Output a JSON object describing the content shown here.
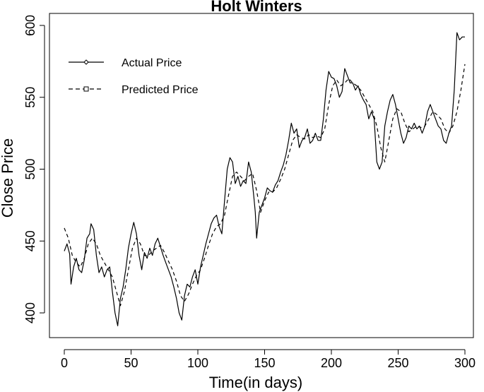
{
  "chart_data": {
    "type": "line",
    "title": "Holt Winters",
    "xlabel": "Time(in days)",
    "ylabel": "Close Price",
    "xlim": [
      0,
      300
    ],
    "ylim": [
      388,
      602
    ],
    "xticks": [
      0,
      50,
      100,
      150,
      200,
      250,
      300
    ],
    "yticks": [
      400,
      450,
      500,
      550,
      600
    ],
    "grid": false,
    "legend_position": "top-left",
    "series": [
      {
        "name": "Actual Price",
        "style": "solid",
        "marker": "diamond",
        "points": [
          [
            0,
            443
          ],
          [
            2,
            448
          ],
          [
            4,
            441
          ],
          [
            5,
            420
          ],
          [
            7,
            432
          ],
          [
            9,
            438
          ],
          [
            11,
            430
          ],
          [
            13,
            428
          ],
          [
            15,
            437
          ],
          [
            17,
            452
          ],
          [
            19,
            455
          ],
          [
            20,
            462
          ],
          [
            22,
            458
          ],
          [
            24,
            440
          ],
          [
            26,
            428
          ],
          [
            28,
            432
          ],
          [
            30,
            425
          ],
          [
            32,
            430
          ],
          [
            34,
            432
          ],
          [
            36,
            415
          ],
          [
            38,
            400
          ],
          [
            40,
            391
          ],
          [
            42,
            410
          ],
          [
            44,
            418
          ],
          [
            46,
            430
          ],
          [
            48,
            445
          ],
          [
            50,
            455
          ],
          [
            52,
            463
          ],
          [
            54,
            455
          ],
          [
            56,
            440
          ],
          [
            58,
            430
          ],
          [
            60,
            442
          ],
          [
            62,
            438
          ],
          [
            64,
            445
          ],
          [
            66,
            440
          ],
          [
            68,
            448
          ],
          [
            70,
            452
          ],
          [
            72,
            446
          ],
          [
            74,
            440
          ],
          [
            76,
            435
          ],
          [
            78,
            430
          ],
          [
            80,
            425
          ],
          [
            82,
            418
          ],
          [
            84,
            410
          ],
          [
            86,
            400
          ],
          [
            88,
            395
          ],
          [
            90,
            412
          ],
          [
            92,
            420
          ],
          [
            94,
            418
          ],
          [
            96,
            425
          ],
          [
            98,
            430
          ],
          [
            100,
            420
          ],
          [
            102,
            432
          ],
          [
            104,
            440
          ],
          [
            106,
            448
          ],
          [
            108,
            455
          ],
          [
            110,
            462
          ],
          [
            112,
            466
          ],
          [
            114,
            468
          ],
          [
            116,
            460
          ],
          [
            118,
            455
          ],
          [
            120,
            478
          ],
          [
            122,
            500
          ],
          [
            124,
            508
          ],
          [
            126,
            505
          ],
          [
            128,
            490
          ],
          [
            130,
            495
          ],
          [
            132,
            488
          ],
          [
            134,
            492
          ],
          [
            136,
            490
          ],
          [
            138,
            505
          ],
          [
            140,
            498
          ],
          [
            142,
            480
          ],
          [
            143,
            470
          ],
          [
            144,
            452
          ],
          [
            146,
            470
          ],
          [
            148,
            475
          ],
          [
            150,
            480
          ],
          [
            152,
            487
          ],
          [
            154,
            485
          ],
          [
            156,
            484
          ],
          [
            158,
            489
          ],
          [
            160,
            492
          ],
          [
            162,
            498
          ],
          [
            164,
            503
          ],
          [
            166,
            510
          ],
          [
            168,
            520
          ],
          [
            170,
            532
          ],
          [
            172,
            525
          ],
          [
            174,
            528
          ],
          [
            176,
            515
          ],
          [
            178,
            520
          ],
          [
            180,
            522
          ],
          [
            182,
            528
          ],
          [
            184,
            518
          ],
          [
            186,
            520
          ],
          [
            188,
            525
          ],
          [
            190,
            520
          ],
          [
            192,
            520
          ],
          [
            194,
            535
          ],
          [
            196,
            555
          ],
          [
            198,
            568
          ],
          [
            200,
            564
          ],
          [
            202,
            563
          ],
          [
            204,
            558
          ],
          [
            206,
            550
          ],
          [
            208,
            554
          ],
          [
            210,
            570
          ],
          [
            212,
            565
          ],
          [
            214,
            560
          ],
          [
            216,
            560
          ],
          [
            218,
            555
          ],
          [
            220,
            558
          ],
          [
            222,
            552
          ],
          [
            224,
            548
          ],
          [
            226,
            545
          ],
          [
            228,
            535
          ],
          [
            230,
            540
          ],
          [
            232,
            535
          ],
          [
            234,
            505
          ],
          [
            236,
            500
          ],
          [
            238,
            505
          ],
          [
            240,
            530
          ],
          [
            242,
            540
          ],
          [
            244,
            548
          ],
          [
            246,
            552
          ],
          [
            248,
            545
          ],
          [
            250,
            535
          ],
          [
            252,
            525
          ],
          [
            254,
            518
          ],
          [
            256,
            522
          ],
          [
            258,
            530
          ],
          [
            260,
            528
          ],
          [
            262,
            532
          ],
          [
            264,
            528
          ],
          [
            266,
            530
          ],
          [
            268,
            525
          ],
          [
            270,
            530
          ],
          [
            272,
            540
          ],
          [
            274,
            545
          ],
          [
            276,
            540
          ],
          [
            278,
            535
          ],
          [
            280,
            530
          ],
          [
            282,
            528
          ],
          [
            284,
            520
          ],
          [
            286,
            518
          ],
          [
            288,
            525
          ],
          [
            290,
            530
          ],
          [
            292,
            555
          ],
          [
            294,
            595
          ],
          [
            296,
            590
          ],
          [
            298,
            592
          ],
          [
            300,
            592
          ]
        ]
      },
      {
        "name": "Predicted Price",
        "style": "dashed",
        "marker": "square",
        "points": [
          [
            0,
            459
          ],
          [
            3,
            452
          ],
          [
            6,
            440
          ],
          [
            9,
            435
          ],
          [
            12,
            432
          ],
          [
            15,
            438
          ],
          [
            18,
            448
          ],
          [
            21,
            452
          ],
          [
            24,
            448
          ],
          [
            27,
            440
          ],
          [
            30,
            435
          ],
          [
            33,
            430
          ],
          [
            36,
            425
          ],
          [
            39,
            415
          ],
          [
            42,
            405
          ],
          [
            45,
            415
          ],
          [
            48,
            430
          ],
          [
            51,
            445
          ],
          [
            54,
            452
          ],
          [
            57,
            448
          ],
          [
            60,
            440
          ],
          [
            63,
            440
          ],
          [
            66,
            443
          ],
          [
            69,
            445
          ],
          [
            72,
            447
          ],
          [
            75,
            442
          ],
          [
            78,
            436
          ],
          [
            81,
            430
          ],
          [
            84,
            422
          ],
          [
            87,
            412
          ],
          [
            90,
            408
          ],
          [
            93,
            413
          ],
          [
            96,
            420
          ],
          [
            99,
            426
          ],
          [
            102,
            430
          ],
          [
            105,
            438
          ],
          [
            108,
            447
          ],
          [
            111,
            455
          ],
          [
            114,
            460
          ],
          [
            117,
            462
          ],
          [
            120,
            468
          ],
          [
            123,
            482
          ],
          [
            126,
            495
          ],
          [
            129,
            498
          ],
          [
            132,
            495
          ],
          [
            135,
            492
          ],
          [
            138,
            495
          ],
          [
            141,
            497
          ],
          [
            144,
            485
          ],
          [
            147,
            470
          ],
          [
            150,
            478
          ],
          [
            153,
            484
          ],
          [
            156,
            484
          ],
          [
            159,
            487
          ],
          [
            162,
            493
          ],
          [
            165,
            500
          ],
          [
            168,
            510
          ],
          [
            171,
            520
          ],
          [
            174,
            524
          ],
          [
            177,
            522
          ],
          [
            180,
            521
          ],
          [
            183,
            524
          ],
          [
            186,
            522
          ],
          [
            189,
            523
          ],
          [
            192,
            522
          ],
          [
            195,
            528
          ],
          [
            198,
            545
          ],
          [
            201,
            558
          ],
          [
            204,
            562
          ],
          [
            207,
            558
          ],
          [
            210,
            560
          ],
          [
            213,
            563
          ],
          [
            216,
            560
          ],
          [
            219,
            558
          ],
          [
            222,
            555
          ],
          [
            225,
            550
          ],
          [
            228,
            545
          ],
          [
            231,
            540
          ],
          [
            234,
            530
          ],
          [
            237,
            515
          ],
          [
            240,
            505
          ],
          [
            243,
            520
          ],
          [
            246,
            535
          ],
          [
            249,
            542
          ],
          [
            252,
            540
          ],
          [
            255,
            532
          ],
          [
            258,
            526
          ],
          [
            261,
            528
          ],
          [
            264,
            530
          ],
          [
            267,
            529
          ],
          [
            270,
            530
          ],
          [
            273,
            535
          ],
          [
            276,
            540
          ],
          [
            279,
            538
          ],
          [
            282,
            535
          ],
          [
            285,
            528
          ],
          [
            288,
            525
          ],
          [
            291,
            530
          ],
          [
            294,
            540
          ],
          [
            297,
            555
          ],
          [
            300,
            573
          ]
        ]
      }
    ]
  }
}
